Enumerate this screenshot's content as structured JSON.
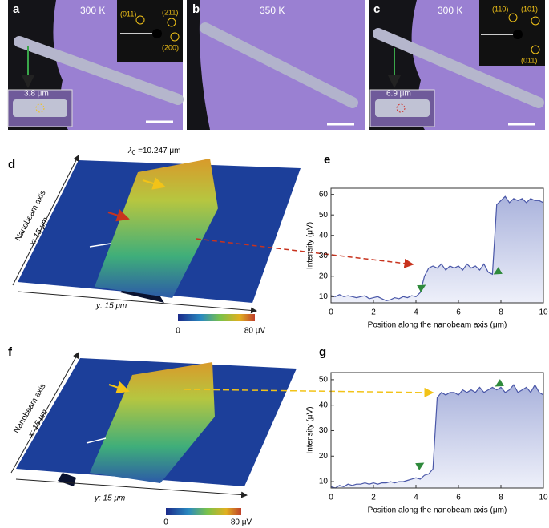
{
  "panels": {
    "a": {
      "letter": "a",
      "temperature": "300 K",
      "spots": [
        "(011)",
        "(211)",
        "(200)"
      ],
      "length": "3.8 μm"
    },
    "b": {
      "letter": "b",
      "temperature": "350 K"
    },
    "c": {
      "letter": "c",
      "temperature": "300 K",
      "spots": [
        "(110)",
        "(101)",
        "(011)"
      ],
      "length": "6.9 μm"
    },
    "d": {
      "letter": "d",
      "lambda": "λ",
      "lambda_sub": "0",
      "wavelength": " =10.247 μm",
      "axis_title": "Nanobeam axis",
      "x_axis": "x: 15 μm",
      "y_axis": "y: 15 μm",
      "colorbar_min": "0",
      "colorbar_max": "80 μV"
    },
    "f": {
      "letter": "f",
      "axis_title": "Nanobeam axis",
      "x_axis": "x: 15 μm",
      "y_axis": "y: 15 μm",
      "colorbar_min": "0",
      "colorbar_max": "80 μV"
    }
  },
  "chart_data": [
    {
      "type": "area",
      "panel": "e",
      "color": "#4a57a8",
      "x": [
        0,
        0.2,
        0.4,
        0.6,
        0.8,
        1,
        1.2,
        1.4,
        1.6,
        1.8,
        2,
        2.2,
        2.4,
        2.6,
        2.8,
        3,
        3.2,
        3.4,
        3.6,
        3.8,
        4,
        4.2,
        4.4,
        4.6,
        4.8,
        5,
        5.2,
        5.4,
        5.6,
        5.8,
        6,
        6.2,
        6.4,
        6.6,
        6.8,
        7,
        7.2,
        7.4,
        7.6,
        7.8,
        8,
        8.2,
        8.4,
        8.6,
        8.8,
        9,
        9.2,
        9.4,
        9.6,
        9.8,
        10
      ],
      "values": [
        10.5,
        10,
        11,
        10,
        10.5,
        10,
        9.5,
        10,
        10.5,
        9,
        9.5,
        10,
        9,
        8,
        8.5,
        9.5,
        9,
        10,
        9.5,
        10.5,
        10,
        12,
        20,
        24,
        25,
        24,
        26,
        23,
        25,
        24,
        25,
        23,
        26,
        24,
        25,
        23,
        26,
        22,
        21,
        55,
        57,
        59,
        56,
        58,
        57,
        58,
        56,
        58,
        57,
        57,
        56
      ],
      "xlim": [
        0,
        10
      ],
      "ylim": [
        7,
        63
      ],
      "xticks": [
        0,
        2,
        4,
        6,
        8,
        10
      ],
      "yticks": [
        10,
        20,
        30,
        40,
        50,
        60
      ],
      "x_label": "Position along the nanobeam axis (μm)",
      "y_label": "Intensity (μV)"
    },
    {
      "type": "area",
      "panel": "g",
      "color": "#4a57a8",
      "x": [
        0,
        0.2,
        0.4,
        0.6,
        0.8,
        1,
        1.2,
        1.4,
        1.6,
        1.8,
        2,
        2.2,
        2.4,
        2.6,
        2.8,
        3,
        3.2,
        3.4,
        3.6,
        3.8,
        4,
        4.2,
        4.4,
        4.6,
        4.8,
        5,
        5.2,
        5.4,
        5.6,
        5.8,
        6,
        6.2,
        6.4,
        6.6,
        6.8,
        7,
        7.2,
        7.4,
        7.6,
        7.8,
        8,
        8.2,
        8.4,
        8.6,
        8.8,
        9,
        9.2,
        9.4,
        9.6,
        9.8,
        10
      ],
      "values": [
        8,
        7.5,
        8.5,
        8,
        9,
        8.5,
        9,
        9,
        9.5,
        9,
        9.5,
        9,
        9.5,
        9.5,
        10,
        9.5,
        10,
        10,
        10.5,
        11,
        11.5,
        11,
        12.5,
        13,
        15,
        43,
        45,
        44,
        45,
        45,
        44,
        46,
        45,
        46,
        45,
        47,
        45,
        46,
        47,
        46,
        47,
        45,
        46,
        48,
        45,
        46,
        47,
        45,
        48,
        45,
        44
      ],
      "xlim": [
        0,
        10
      ],
      "ylim": [
        7.5,
        52.8
      ],
      "xticks": [
        0,
        2,
        4,
        6,
        8,
        10
      ],
      "yticks": [
        10,
        20,
        30,
        40,
        50
      ],
      "x_label": "Position along the nanobeam axis (μm)",
      "y_label": "Intensity (μV)"
    }
  ]
}
